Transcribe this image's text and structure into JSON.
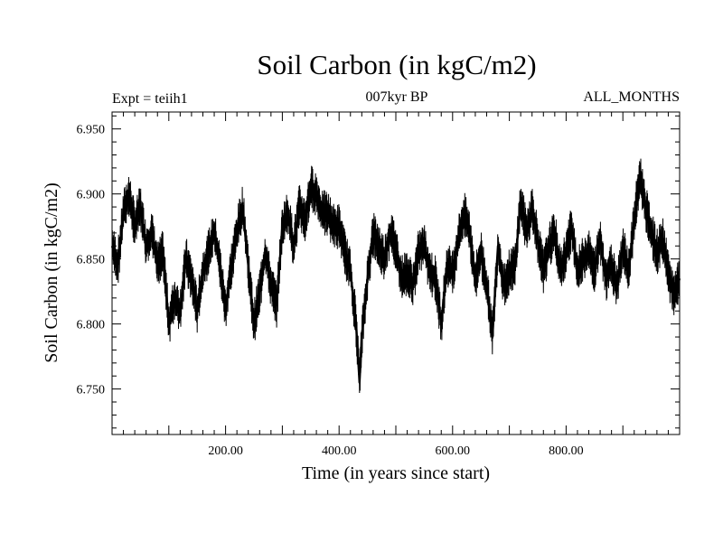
{
  "chart_data": {
    "type": "line",
    "title": "Soil Carbon (in kgC/m2)",
    "subtitle_left": "Expt = teiih1",
    "subtitle_center": "007kyr BP",
    "subtitle_right": "ALL_MONTHS",
    "xlabel": "Time (in years since start)",
    "ylabel": "Soil Carbon (in kgC/m2)",
    "xlim": [
      0,
      1000
    ],
    "ylim": [
      6.715,
      6.963
    ],
    "xticks": [
      200,
      400,
      600,
      800
    ],
    "xtick_labels": [
      "200.00",
      "400.00",
      "600.00",
      "800.00"
    ],
    "yticks": [
      6.75,
      6.8,
      6.85,
      6.9,
      6.95
    ],
    "ytick_labels": [
      "6.750",
      "6.800",
      "6.850",
      "6.900",
      "6.950"
    ],
    "grid": false,
    "series": [
      {
        "color": "#000000",
        "x": [
          0,
          10,
          20,
          30,
          40,
          50,
          60,
          70,
          80,
          90,
          100,
          110,
          120,
          130,
          140,
          150,
          160,
          170,
          180,
          190,
          200,
          210,
          220,
          230,
          240,
          250,
          260,
          270,
          280,
          290,
          300,
          310,
          320,
          330,
          340,
          350,
          360,
          370,
          380,
          390,
          400,
          410,
          420,
          430,
          436,
          440,
          450,
          460,
          470,
          480,
          490,
          500,
          510,
          520,
          530,
          540,
          550,
          560,
          570,
          580,
          590,
          600,
          610,
          620,
          630,
          640,
          650,
          660,
          670,
          680,
          690,
          700,
          710,
          720,
          730,
          740,
          750,
          760,
          770,
          780,
          790,
          800,
          810,
          820,
          830,
          840,
          850,
          860,
          870,
          880,
          890,
          900,
          910,
          920,
          930,
          940,
          950,
          960,
          970,
          980,
          990,
          1000
        ],
        "values": [
          6.86,
          6.845,
          6.885,
          6.9,
          6.875,
          6.89,
          6.86,
          6.87,
          6.845,
          6.855,
          6.8,
          6.82,
          6.81,
          6.85,
          6.835,
          6.81,
          6.84,
          6.855,
          6.87,
          6.845,
          6.81,
          6.845,
          6.87,
          6.89,
          6.845,
          6.8,
          6.825,
          6.855,
          6.83,
          6.815,
          6.875,
          6.885,
          6.86,
          6.89,
          6.88,
          6.905,
          6.9,
          6.885,
          6.885,
          6.875,
          6.875,
          6.855,
          6.84,
          6.8,
          6.755,
          6.79,
          6.835,
          6.87,
          6.86,
          6.85,
          6.87,
          6.86,
          6.835,
          6.84,
          6.83,
          6.855,
          6.86,
          6.84,
          6.835,
          6.8,
          6.845,
          6.84,
          6.865,
          6.885,
          6.87,
          6.835,
          6.855,
          6.83,
          6.79,
          6.86,
          6.83,
          6.84,
          6.845,
          6.895,
          6.87,
          6.89,
          6.865,
          6.84,
          6.86,
          6.87,
          6.84,
          6.855,
          6.875,
          6.84,
          6.85,
          6.855,
          6.84,
          6.865,
          6.835,
          6.845,
          6.83,
          6.86,
          6.84,
          6.88,
          6.915,
          6.89,
          6.87,
          6.855,
          6.865,
          6.84,
          6.82,
          6.835
        ]
      }
    ]
  }
}
